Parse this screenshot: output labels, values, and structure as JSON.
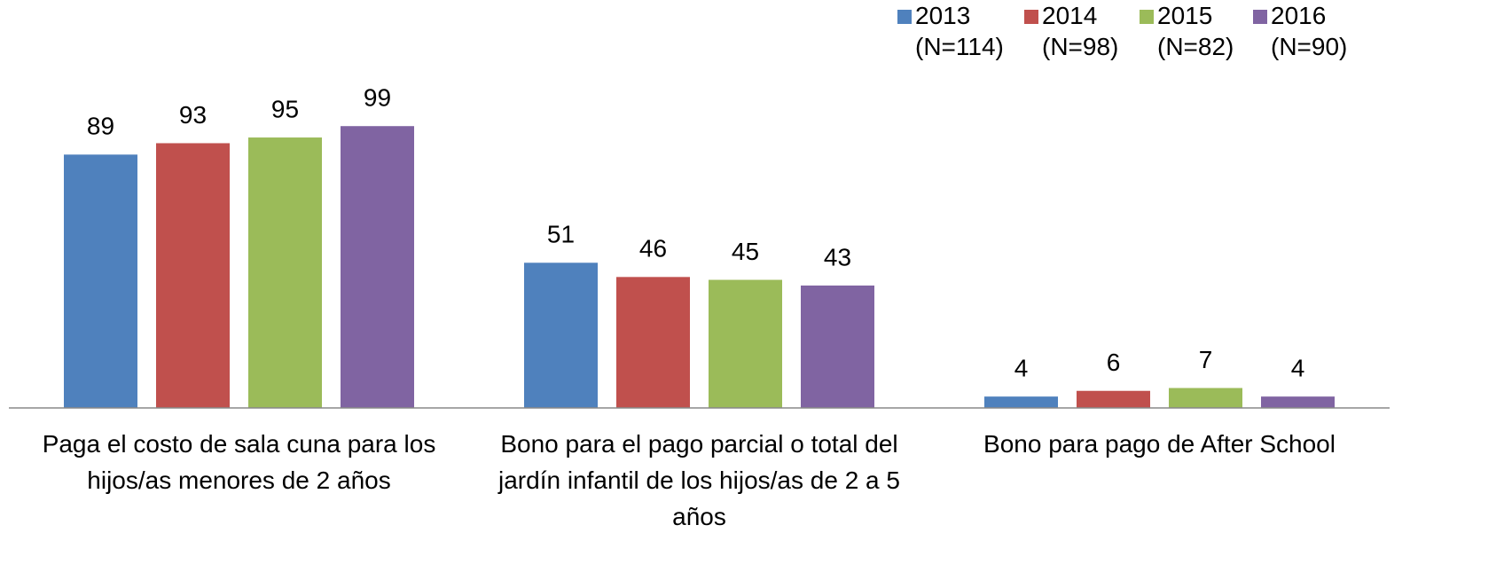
{
  "chart_data": {
    "type": "bar",
    "categories": [
      "Paga el costo de sala cuna para los\nhijos/as menores de 2 años",
      "Bono para el pago parcial o total del\njardín infantil de los hijos/as de 2 a 5\naños",
      "Bono para pago de After School"
    ],
    "series": [
      {
        "name": "2013\n(N=114)",
        "color": "#4f81bd",
        "values": [
          89,
          51,
          4
        ]
      },
      {
        "name": "2014\n(N=98)",
        "color": "#c0504d",
        "values": [
          93,
          46,
          6
        ]
      },
      {
        "name": "2015\n(N=82)",
        "color": "#9bbb59",
        "values": [
          95,
          45,
          7
        ]
      },
      {
        "name": "2016\n(N=90)",
        "color": "#8064a2",
        "values": [
          99,
          43,
          4
        ]
      }
    ],
    "ylim": [
      0,
      100
    ],
    "legend": "top-right"
  }
}
